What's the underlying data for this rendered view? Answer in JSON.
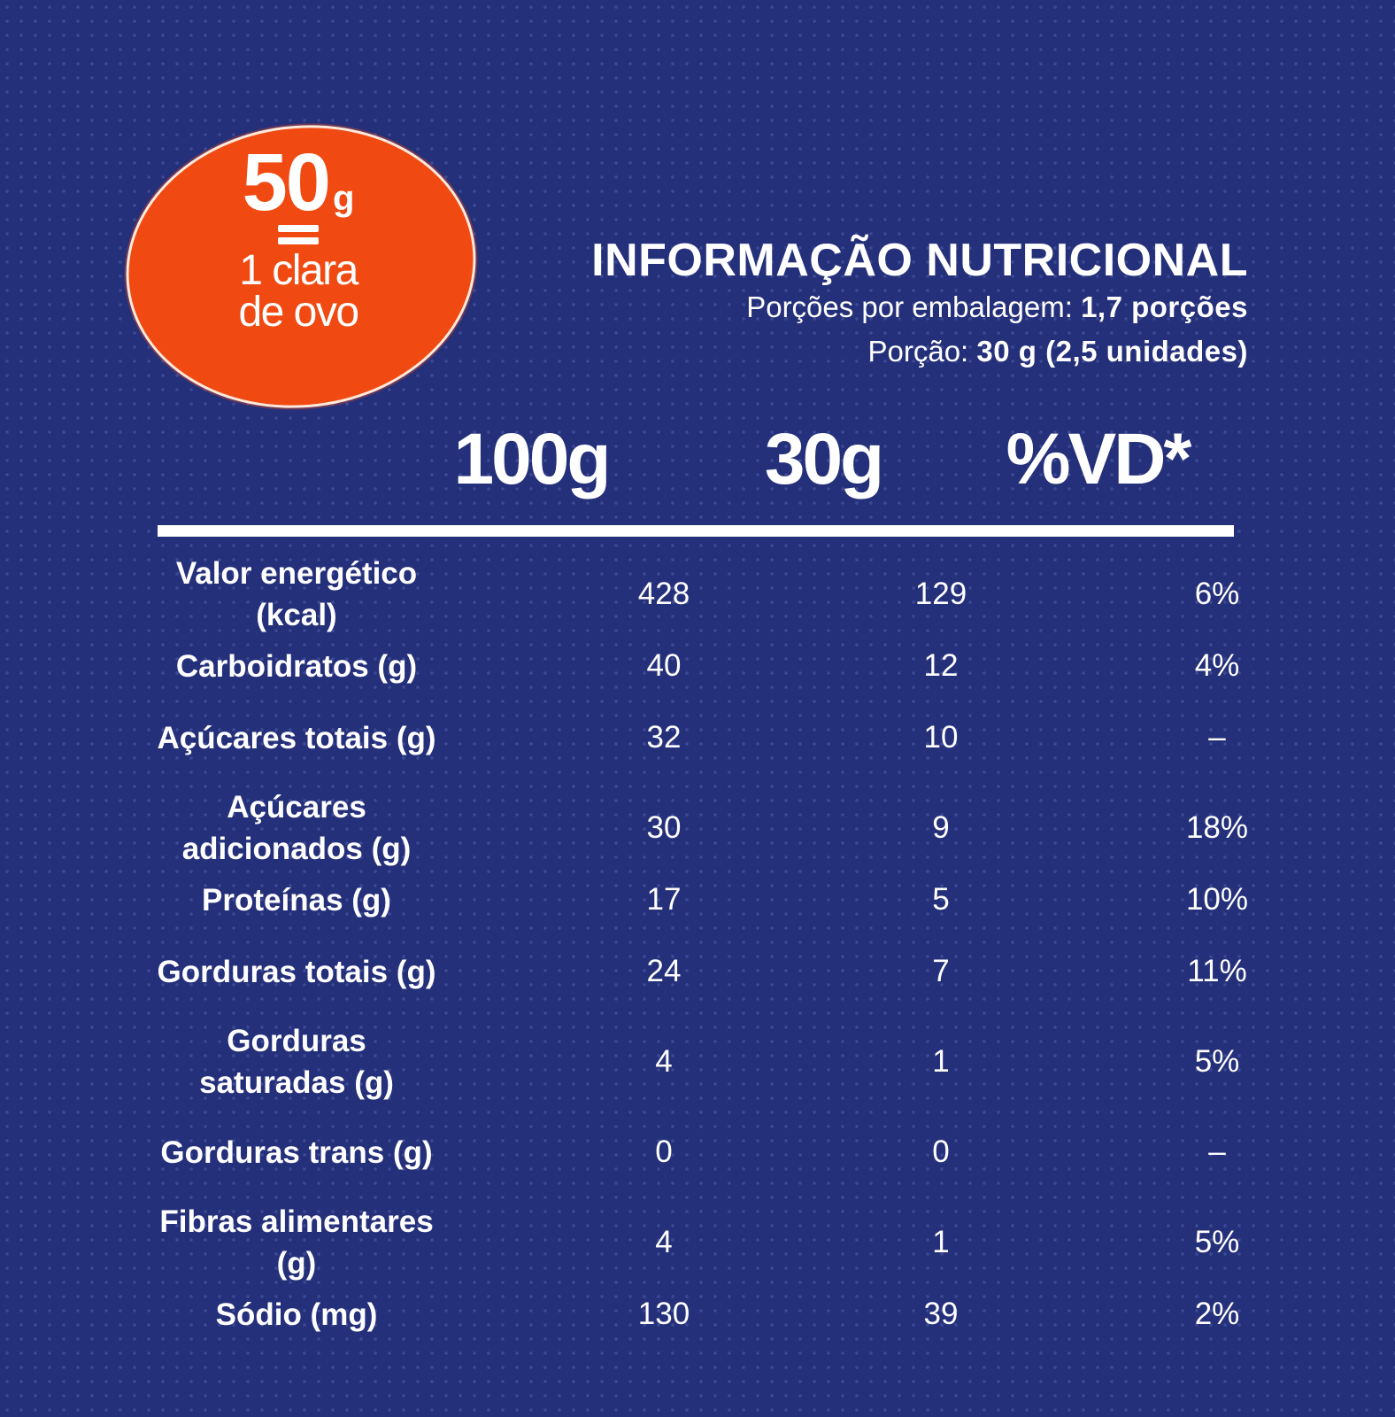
{
  "badge": {
    "amount": "50",
    "unit": "g",
    "line1": "1 clara",
    "line2": "de ovo"
  },
  "header": {
    "title": "INFORMAÇÃO NUTRICIONAL",
    "servings_label": "Porções por embalagem:",
    "servings_value": "1,7 porções",
    "portion_label": "Porção:",
    "portion_value": "30 g (2,5 unidades)"
  },
  "columns": [
    "100g",
    "30g",
    "%VD*"
  ],
  "rows": [
    {
      "label": "Valor energético (kcal)",
      "v100": "428",
      "v30": "129",
      "vd": "6%"
    },
    {
      "label": "Carboidratos (g)",
      "v100": "40",
      "v30": "12",
      "vd": "4%"
    },
    {
      "label": "Açúcares totais (g)",
      "v100": "32",
      "v30": "10",
      "vd": "–"
    },
    {
      "label": "Açúcares adicionados (g)",
      "v100": "30",
      "v30": "9",
      "vd": "18%"
    },
    {
      "label": "Proteínas (g)",
      "v100": "17",
      "v30": "5",
      "vd": "10%"
    },
    {
      "label": "Gorduras totais (g)",
      "v100": "24",
      "v30": "7",
      "vd": "11%"
    },
    {
      "label": "Gorduras saturadas (g)",
      "v100": "4",
      "v30": "1",
      "vd": "5%"
    },
    {
      "label": "Gorduras trans (g)",
      "v100": "0",
      "v30": "0",
      "vd": "–"
    },
    {
      "label": "Fibras alimentares (g)",
      "v100": "4",
      "v30": "1",
      "vd": "5%"
    },
    {
      "label": "Sódio (mg)",
      "v100": "130",
      "v30": "39",
      "vd": "2%"
    }
  ],
  "colors": {
    "background": "#25307a",
    "badge": "#f04a12",
    "text": "#ffffff"
  }
}
